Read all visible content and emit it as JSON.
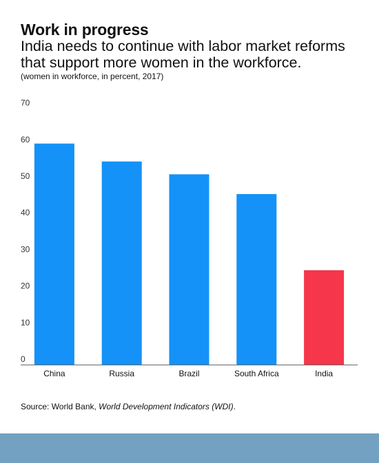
{
  "header": {
    "title": "Work in progress",
    "subtitle": "India needs to continue with labor market reforms that support more women in the workforce.",
    "note": "(women in workforce, in percent, 2017)"
  },
  "source": {
    "prefix": "Source: World Bank, ",
    "publication": "World Development Indicators (WDI)",
    "suffix": "."
  },
  "colors": {
    "bar_default": "#1492f7",
    "bar_highlight": "#f5364b",
    "axis_text": "#333333",
    "footer_band": "#73a1c2"
  },
  "chart_data": {
    "type": "bar",
    "categories": [
      "China",
      "Russia",
      "Brazil",
      "South Africa",
      "India"
    ],
    "values": [
      60.4,
      55.5,
      52.0,
      46.6,
      25.8
    ],
    "highlight": [
      "India"
    ],
    "title": "",
    "xlabel": "",
    "ylabel": "",
    "ylim": [
      0,
      70
    ],
    "yticks": [
      0,
      10,
      20,
      30,
      40,
      50,
      60,
      70
    ],
    "grid": false,
    "legend": "none"
  }
}
